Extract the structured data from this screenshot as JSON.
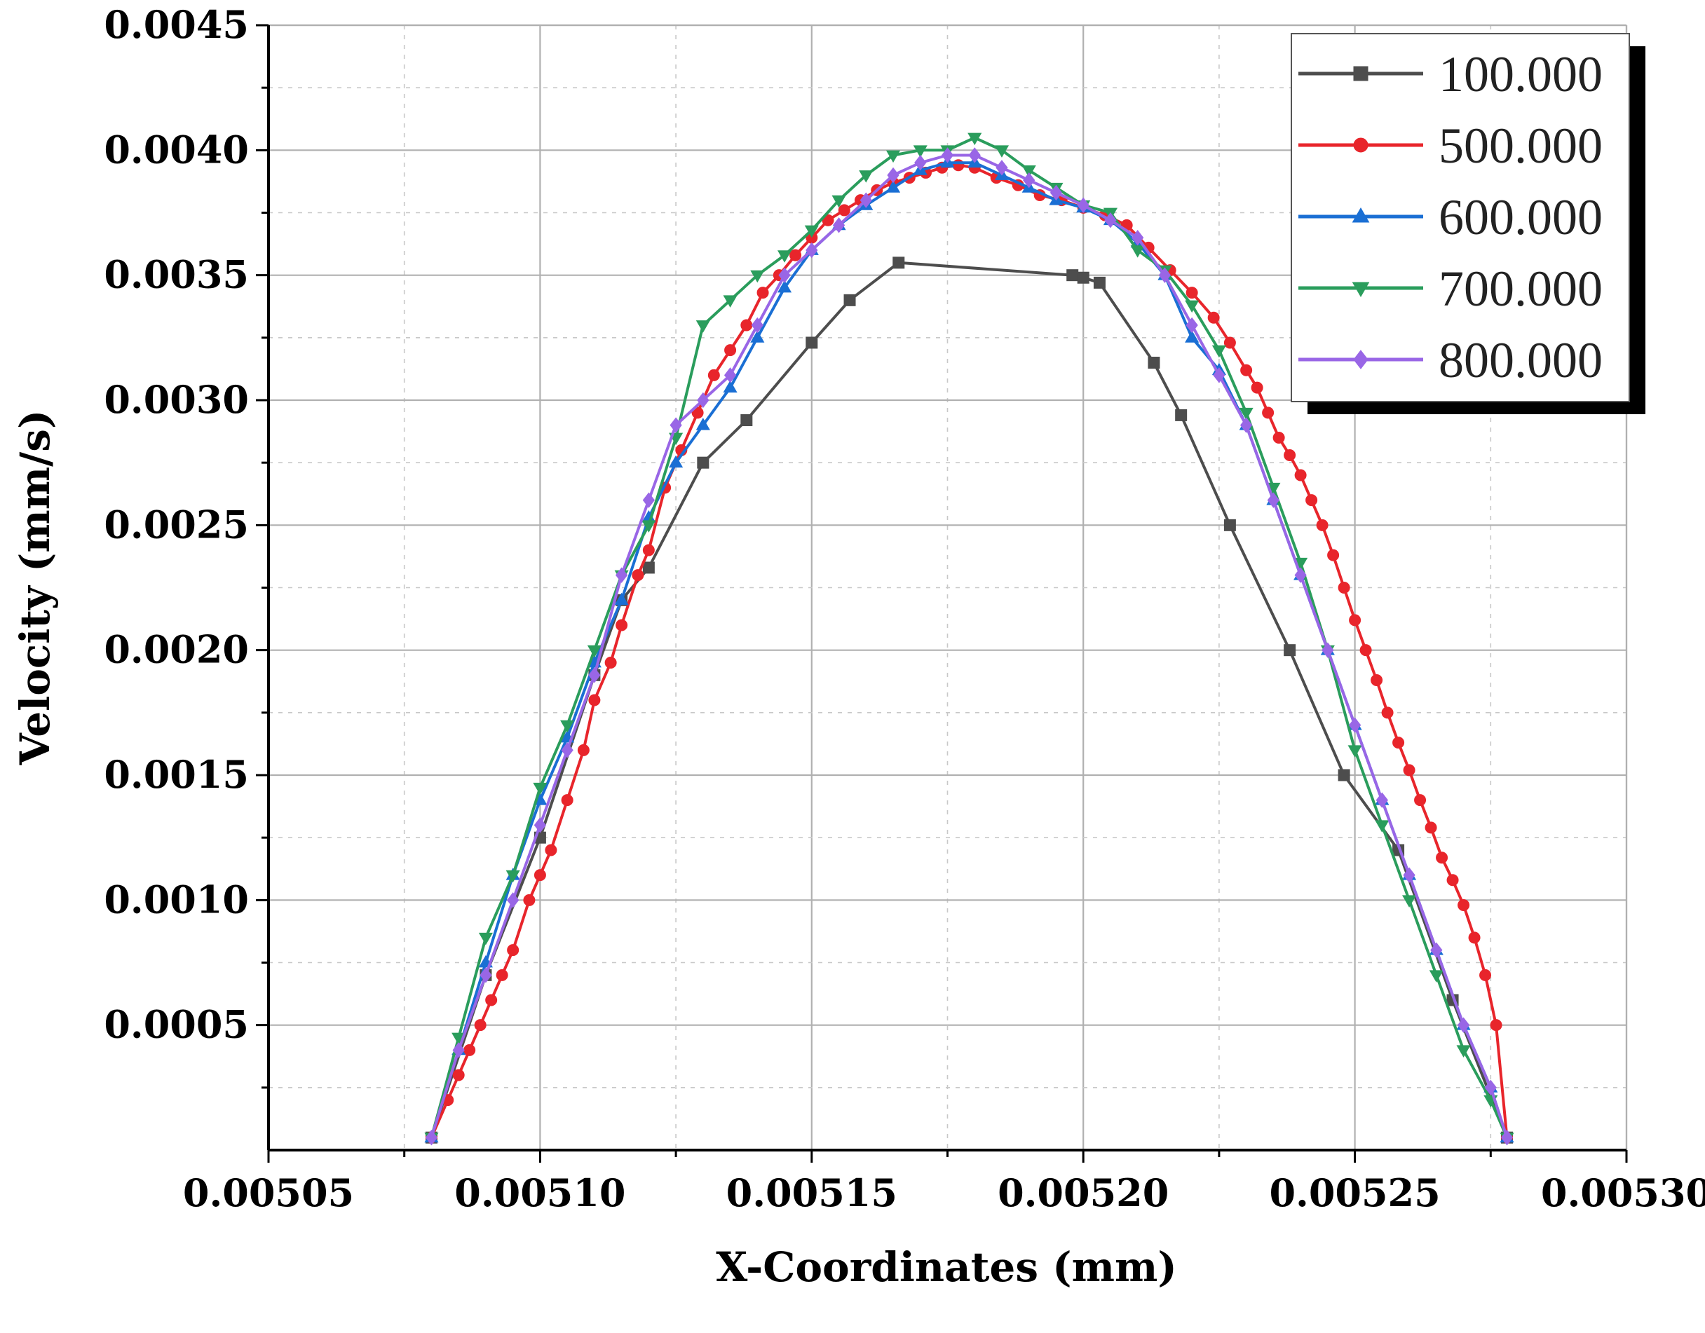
{
  "chart_data": {
    "type": "line",
    "xlabel": "X-Coordinates (mm)",
    "ylabel": "Velocity (mm/s)",
    "xlim": [
      0.00505,
      0.0053
    ],
    "ylim": [
      0,
      0.0045
    ],
    "x_ticks": [
      0.00505,
      0.0051,
      0.00515,
      0.0052,
      0.00525,
      0.0053
    ],
    "x_tick_labels": [
      "0.00505",
      "0.00510",
      "0.00515",
      "0.00520",
      "0.00525",
      "0.00530"
    ],
    "y_ticks": [
      0.0005,
      0.001,
      0.0015,
      0.002,
      0.0025,
      0.003,
      0.0035,
      0.004,
      0.0045
    ],
    "y_tick_labels": [
      "0.0005",
      "0.0010",
      "0.0015",
      "0.0020",
      "0.0025",
      "0.0030",
      "0.0035",
      "0.0040",
      "0.0045"
    ],
    "grid": true,
    "legend_position": "top-right",
    "series": [
      {
        "name": "100.000",
        "color": "#4d4d4d",
        "marker": "square",
        "x": [
          0.00508,
          0.00509,
          0.0051,
          0.00511,
          0.005115,
          0.00512,
          0.00513,
          0.005138,
          0.00515,
          0.005157,
          0.005166,
          0.005198,
          0.0052,
          0.005203,
          0.005213,
          0.005218,
          0.005227,
          0.005238,
          0.005248,
          0.005258,
          0.005268,
          0.005278
        ],
        "y": [
          5e-05,
          0.0007,
          0.00125,
          0.0019,
          0.0022,
          0.00233,
          0.00275,
          0.00292,
          0.00323,
          0.0034,
          0.00355,
          0.0035,
          0.00349,
          0.00347,
          0.00315,
          0.00294,
          0.0025,
          0.002,
          0.0015,
          0.0012,
          0.0006,
          5e-05
        ]
      },
      {
        "name": "500.000",
        "color": "#e8252b",
        "marker": "circle",
        "x": [
          0.00508,
          0.005083,
          0.005085,
          0.005087,
          0.005089,
          0.005091,
          0.005093,
          0.005095,
          0.005098,
          0.0051,
          0.005102,
          0.005105,
          0.005108,
          0.00511,
          0.005113,
          0.005115,
          0.005118,
          0.00512,
          0.005123,
          0.005126,
          0.005129,
          0.005132,
          0.005135,
          0.005138,
          0.005141,
          0.005144,
          0.005147,
          0.00515,
          0.005153,
          0.005156,
          0.005159,
          0.005162,
          0.005165,
          0.005168,
          0.005171,
          0.005174,
          0.005177,
          0.00518,
          0.005184,
          0.005188,
          0.005192,
          0.005196,
          0.0052,
          0.005204,
          0.005208,
          0.005212,
          0.005216,
          0.00522,
          0.005224,
          0.005227,
          0.00523,
          0.005232,
          0.005234,
          0.005236,
          0.005238,
          0.00524,
          0.005242,
          0.005244,
          0.005246,
          0.005248,
          0.00525,
          0.005252,
          0.005254,
          0.005256,
          0.005258,
          0.00526,
          0.005262,
          0.005264,
          0.005266,
          0.005268,
          0.00527,
          0.005272,
          0.005274,
          0.005276,
          0.005278
        ],
        "y": [
          5e-05,
          0.0002,
          0.0003,
          0.0004,
          0.0005,
          0.0006,
          0.0007,
          0.0008,
          0.001,
          0.0011,
          0.0012,
          0.0014,
          0.0016,
          0.0018,
          0.00195,
          0.0021,
          0.0023,
          0.0024,
          0.00265,
          0.0028,
          0.00295,
          0.0031,
          0.0032,
          0.0033,
          0.00343,
          0.0035,
          0.00358,
          0.00365,
          0.00372,
          0.00376,
          0.0038,
          0.00384,
          0.00387,
          0.00389,
          0.00391,
          0.00393,
          0.00394,
          0.00393,
          0.00389,
          0.00386,
          0.00382,
          0.0038,
          0.00377,
          0.00374,
          0.0037,
          0.00361,
          0.00352,
          0.00343,
          0.00333,
          0.00323,
          0.00312,
          0.00305,
          0.00295,
          0.00285,
          0.00278,
          0.0027,
          0.0026,
          0.0025,
          0.00238,
          0.00225,
          0.00212,
          0.002,
          0.00188,
          0.00175,
          0.00163,
          0.00152,
          0.0014,
          0.00129,
          0.00117,
          0.00108,
          0.00098,
          0.00085,
          0.0007,
          0.0005,
          5e-05
        ]
      },
      {
        "name": "600.000",
        "color": "#1a6fd4",
        "marker": "triangle-up",
        "x": [
          0.00508,
          0.005085,
          0.00509,
          0.005095,
          0.0051,
          0.005105,
          0.00511,
          0.005115,
          0.00512,
          0.005125,
          0.00513,
          0.005135,
          0.00514,
          0.005145,
          0.00515,
          0.005155,
          0.00516,
          0.005165,
          0.00517,
          0.005175,
          0.00518,
          0.005185,
          0.00519,
          0.005195,
          0.0052,
          0.005205,
          0.00521,
          0.005215,
          0.00522,
          0.005225,
          0.00523,
          0.005235,
          0.00524,
          0.005245,
          0.00525,
          0.005255,
          0.00526,
          0.005265,
          0.00527,
          0.005275,
          0.005278
        ],
        "y": [
          5e-05,
          0.0004,
          0.00075,
          0.0011,
          0.0014,
          0.00165,
          0.00195,
          0.0022,
          0.00253,
          0.00275,
          0.0029,
          0.00305,
          0.00325,
          0.00345,
          0.0036,
          0.0037,
          0.00378,
          0.00385,
          0.00392,
          0.00395,
          0.00395,
          0.0039,
          0.00385,
          0.0038,
          0.00377,
          0.00372,
          0.00363,
          0.0035,
          0.00325,
          0.00312,
          0.0029,
          0.0026,
          0.0023,
          0.002,
          0.0017,
          0.0014,
          0.0011,
          0.0008,
          0.0005,
          0.00025,
          5e-05
        ]
      },
      {
        "name": "700.000",
        "color": "#2a9d5c",
        "marker": "triangle-down",
        "x": [
          0.00508,
          0.005085,
          0.00509,
          0.005095,
          0.0051,
          0.005105,
          0.00511,
          0.005115,
          0.00512,
          0.005125,
          0.00513,
          0.005135,
          0.00514,
          0.005145,
          0.00515,
          0.005155,
          0.00516,
          0.005165,
          0.00517,
          0.005175,
          0.00518,
          0.005185,
          0.00519,
          0.005195,
          0.0052,
          0.005205,
          0.00521,
          0.005215,
          0.00522,
          0.005225,
          0.00523,
          0.005235,
          0.00524,
          0.005245,
          0.00525,
          0.005255,
          0.00526,
          0.005265,
          0.00527,
          0.005275,
          0.005278
        ],
        "y": [
          5e-05,
          0.00045,
          0.00085,
          0.0011,
          0.00145,
          0.0017,
          0.002,
          0.0023,
          0.0025,
          0.00285,
          0.0033,
          0.0034,
          0.0035,
          0.00358,
          0.00368,
          0.0038,
          0.0039,
          0.00398,
          0.004,
          0.004,
          0.00405,
          0.004,
          0.00392,
          0.00385,
          0.00378,
          0.00375,
          0.0036,
          0.00352,
          0.00338,
          0.0032,
          0.00295,
          0.00265,
          0.00235,
          0.002,
          0.0016,
          0.0013,
          0.001,
          0.0007,
          0.0004,
          0.0002,
          5e-05
        ]
      },
      {
        "name": "800.000",
        "color": "#9966e6",
        "marker": "diamond",
        "x": [
          0.00508,
          0.005085,
          0.00509,
          0.005095,
          0.0051,
          0.005105,
          0.00511,
          0.005115,
          0.00512,
          0.005125,
          0.00513,
          0.005135,
          0.00514,
          0.005145,
          0.00515,
          0.005155,
          0.00516,
          0.005165,
          0.00517,
          0.005175,
          0.00518,
          0.005185,
          0.00519,
          0.005195,
          0.0052,
          0.005205,
          0.00521,
          0.005215,
          0.00522,
          0.005225,
          0.00523,
          0.005235,
          0.00524,
          0.005245,
          0.00525,
          0.005255,
          0.00526,
          0.005265,
          0.00527,
          0.005275,
          0.005278
        ],
        "y": [
          5e-05,
          0.0004,
          0.0007,
          0.001,
          0.0013,
          0.0016,
          0.0019,
          0.0023,
          0.0026,
          0.0029,
          0.003,
          0.0031,
          0.0033,
          0.0035,
          0.0036,
          0.0037,
          0.0038,
          0.0039,
          0.00395,
          0.00398,
          0.00398,
          0.00393,
          0.00388,
          0.00383,
          0.00378,
          0.00372,
          0.00365,
          0.0035,
          0.0033,
          0.0031,
          0.0029,
          0.0026,
          0.0023,
          0.002,
          0.0017,
          0.0014,
          0.0011,
          0.0008,
          0.0005,
          0.00025,
          5e-05
        ]
      }
    ]
  }
}
